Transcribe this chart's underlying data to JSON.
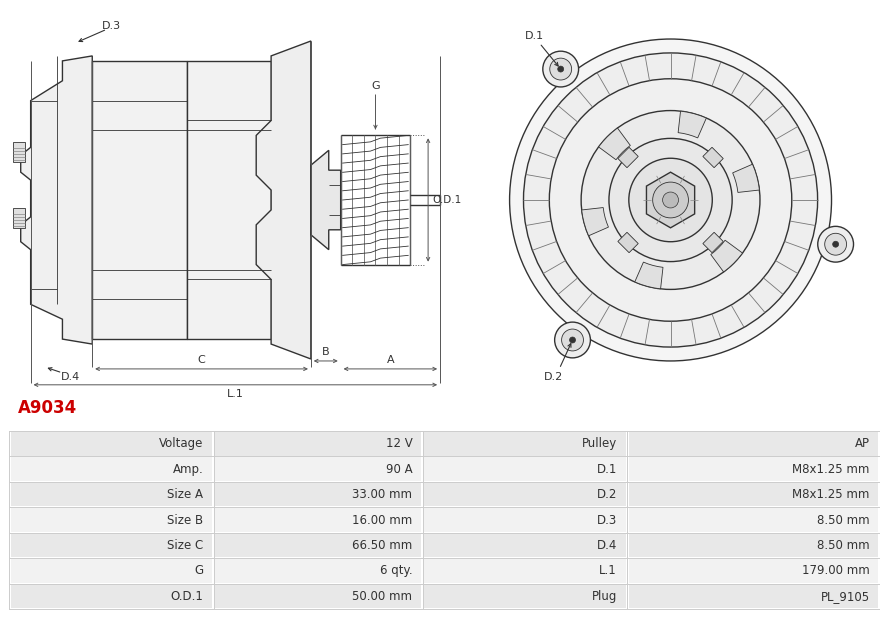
{
  "title": "A9034",
  "title_color": "#cc0000",
  "bg_color": "#ffffff",
  "line_color": "#333333",
  "dim_color": "#555555",
  "fill_light": "#f5f5f5",
  "fill_mid": "#ebebeb",
  "rows": [
    [
      "Voltage",
      "12 V",
      "Pulley",
      "AP"
    ],
    [
      "Amp.",
      "90 A",
      "D.1",
      "M8x1.25 mm"
    ],
    [
      "Size A",
      "33.00 mm",
      "D.2",
      "M8x1.25 mm"
    ],
    [
      "Size B",
      "16.00 mm",
      "D.3",
      "8.50 mm"
    ],
    [
      "Size C",
      "66.50 mm",
      "D.4",
      "8.50 mm"
    ],
    [
      "G",
      "6 qty.",
      "L.1",
      "179.00 mm"
    ],
    [
      "O.D.1",
      "50.00 mm",
      "Plug",
      "PL_9105"
    ]
  ],
  "table_row_bg_odd": "#e8e8e8",
  "table_row_bg_even": "#f2f2f2",
  "font_size_title": 12,
  "font_size_table": 8.5
}
